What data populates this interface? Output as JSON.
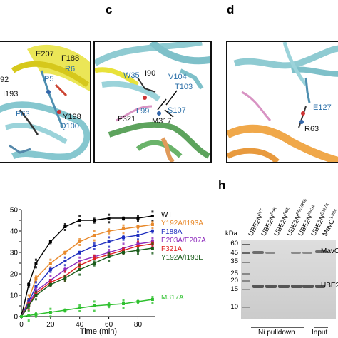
{
  "panels": {
    "c": "c",
    "d": "d",
    "h": "h"
  },
  "structure_b": {
    "labels": [
      "E207",
      "F188",
      "92",
      "R6",
      "P5",
      "I193",
      "P63",
      "Y198",
      "Q100"
    ],
    "colors": {
      "black": "#111111",
      "blue": "#2b6fa8"
    }
  },
  "structure_c": {
    "labels": [
      "W35",
      "I90",
      "V104",
      "T103",
      "L99",
      "S107",
      "F321",
      "M317"
    ]
  },
  "structure_d": {
    "labels": [
      "E127",
      "R63"
    ]
  },
  "chart_data": {
    "type": "line",
    "xlabel": "Time (min)",
    "xlim": [
      0,
      92
    ],
    "ylim": [
      0,
      50
    ],
    "x_ticks": [
      0,
      20,
      40,
      60,
      80
    ],
    "y_ticks": [
      0,
      5,
      10,
      15,
      20,
      25,
      30,
      35,
      40,
      45,
      50
    ],
    "x": [
      0,
      5,
      10,
      20,
      30,
      40,
      50,
      60,
      70,
      80,
      90
    ],
    "series": [
      {
        "name": "WT",
        "color": "#000000",
        "values": [
          0,
          15,
          25,
          35,
          42,
          45,
          45,
          46,
          46,
          46,
          47
        ]
      },
      {
        "name": "Y192A/I193A",
        "color": "#e8892b",
        "values": [
          0,
          8,
          18,
          25,
          30,
          35,
          38,
          40,
          41,
          42,
          43
        ]
      },
      {
        "name": "F188A",
        "color": "#1f2fbf",
        "values": [
          0,
          7,
          14,
          22,
          26,
          30,
          33,
          35,
          37,
          38,
          40
        ]
      },
      {
        "name": "E203A/E207A",
        "color": "#8e2bbd",
        "values": [
          0,
          6,
          12,
          17,
          22,
          26,
          28,
          30,
          32,
          34,
          35
        ]
      },
      {
        "name": "F321A",
        "color": "#e02020",
        "values": [
          0,
          5,
          11,
          16,
          19,
          24,
          27,
          29,
          31,
          33,
          34
        ]
      },
      {
        "name": "Y192A/I193E",
        "color": "#1a5c1a",
        "values": [
          0,
          5,
          10,
          15,
          18,
          22,
          25,
          28,
          30,
          31,
          32
        ]
      },
      {
        "name": "M317A",
        "color": "#2ec02e",
        "values": [
          0,
          0.5,
          1,
          2,
          3,
          4,
          5,
          5.5,
          6,
          7,
          8
        ]
      }
    ]
  },
  "gel": {
    "lanes": [
      {
        "base": "UBE2N",
        "sup": "WT"
      },
      {
        "base": "UBE2N",
        "sup": "P5K"
      },
      {
        "base": "UBE2N",
        "sup": "R6E"
      },
      {
        "base": "UBE2N",
        "sup": "P5G/R6E"
      },
      {
        "base": "UBE2N",
        "sup": "K92A"
      },
      {
        "base": "UBE2N",
        "sup": "E127K"
      },
      {
        "base": "MavC",
        "sup": "1-384"
      }
    ],
    "kda_label": "kDa",
    "markers": [
      "60",
      "45",
      "35",
      "25",
      "20",
      "15",
      "10"
    ],
    "right_labels": [
      "MavC",
      "UBE2"
    ],
    "bottom_labels": {
      "pulldown": "Ni pulldown",
      "input": "Input"
    }
  }
}
